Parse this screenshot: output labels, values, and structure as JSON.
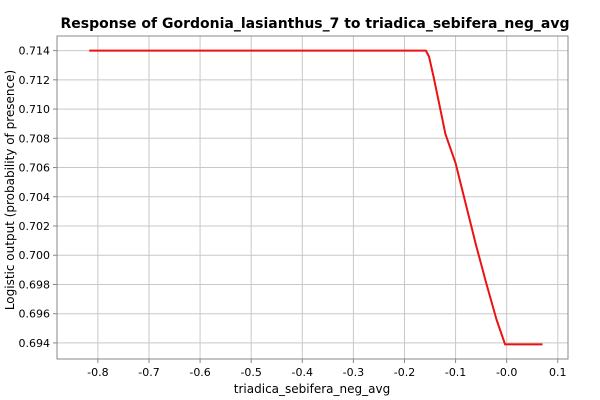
{
  "chart_data": {
    "type": "line",
    "title": "Response of Gordonia_lasianthus_7 to triadica_sebifera_neg_avg",
    "xlabel": "triadica_sebifera_neg_avg",
    "ylabel": "Logistic output (probability of presence)",
    "xlim": [
      -0.88,
      0.12
    ],
    "ylim": [
      0.6929,
      0.715
    ],
    "x_ticks": [
      -0.8,
      -0.7,
      -0.6,
      -0.5,
      -0.4,
      -0.3,
      -0.2,
      -0.1,
      0.0,
      0.1
    ],
    "x_tick_labels": [
      "-0.8",
      "-0.7",
      "-0.6",
      "-0.5",
      "-0.4",
      "-0.3",
      "-0.2",
      "-0.1",
      "-0.0",
      "0.1"
    ],
    "y_ticks": [
      0.694,
      0.696,
      0.698,
      0.7,
      0.702,
      0.704,
      0.706,
      0.708,
      0.71,
      0.712,
      0.714
    ],
    "y_tick_labels": [
      "0.694",
      "0.696",
      "0.698",
      "0.700",
      "0.702",
      "0.704",
      "0.706",
      "0.708",
      "0.710",
      "0.712",
      "0.714"
    ],
    "grid": true,
    "series": [
      {
        "color": "#ee1111",
        "x": [
          -0.817,
          -0.158,
          -0.152,
          -0.143,
          -0.13,
          -0.12,
          -0.1,
          -0.08,
          -0.06,
          -0.04,
          -0.02,
          -0.003,
          0.0,
          0.07
        ],
        "y": [
          0.714,
          0.714,
          0.7136,
          0.7122,
          0.71,
          0.7083,
          0.7063,
          0.7035,
          0.7007,
          0.6981,
          0.6956,
          0.6939,
          0.6939,
          0.6939
        ]
      }
    ]
  }
}
